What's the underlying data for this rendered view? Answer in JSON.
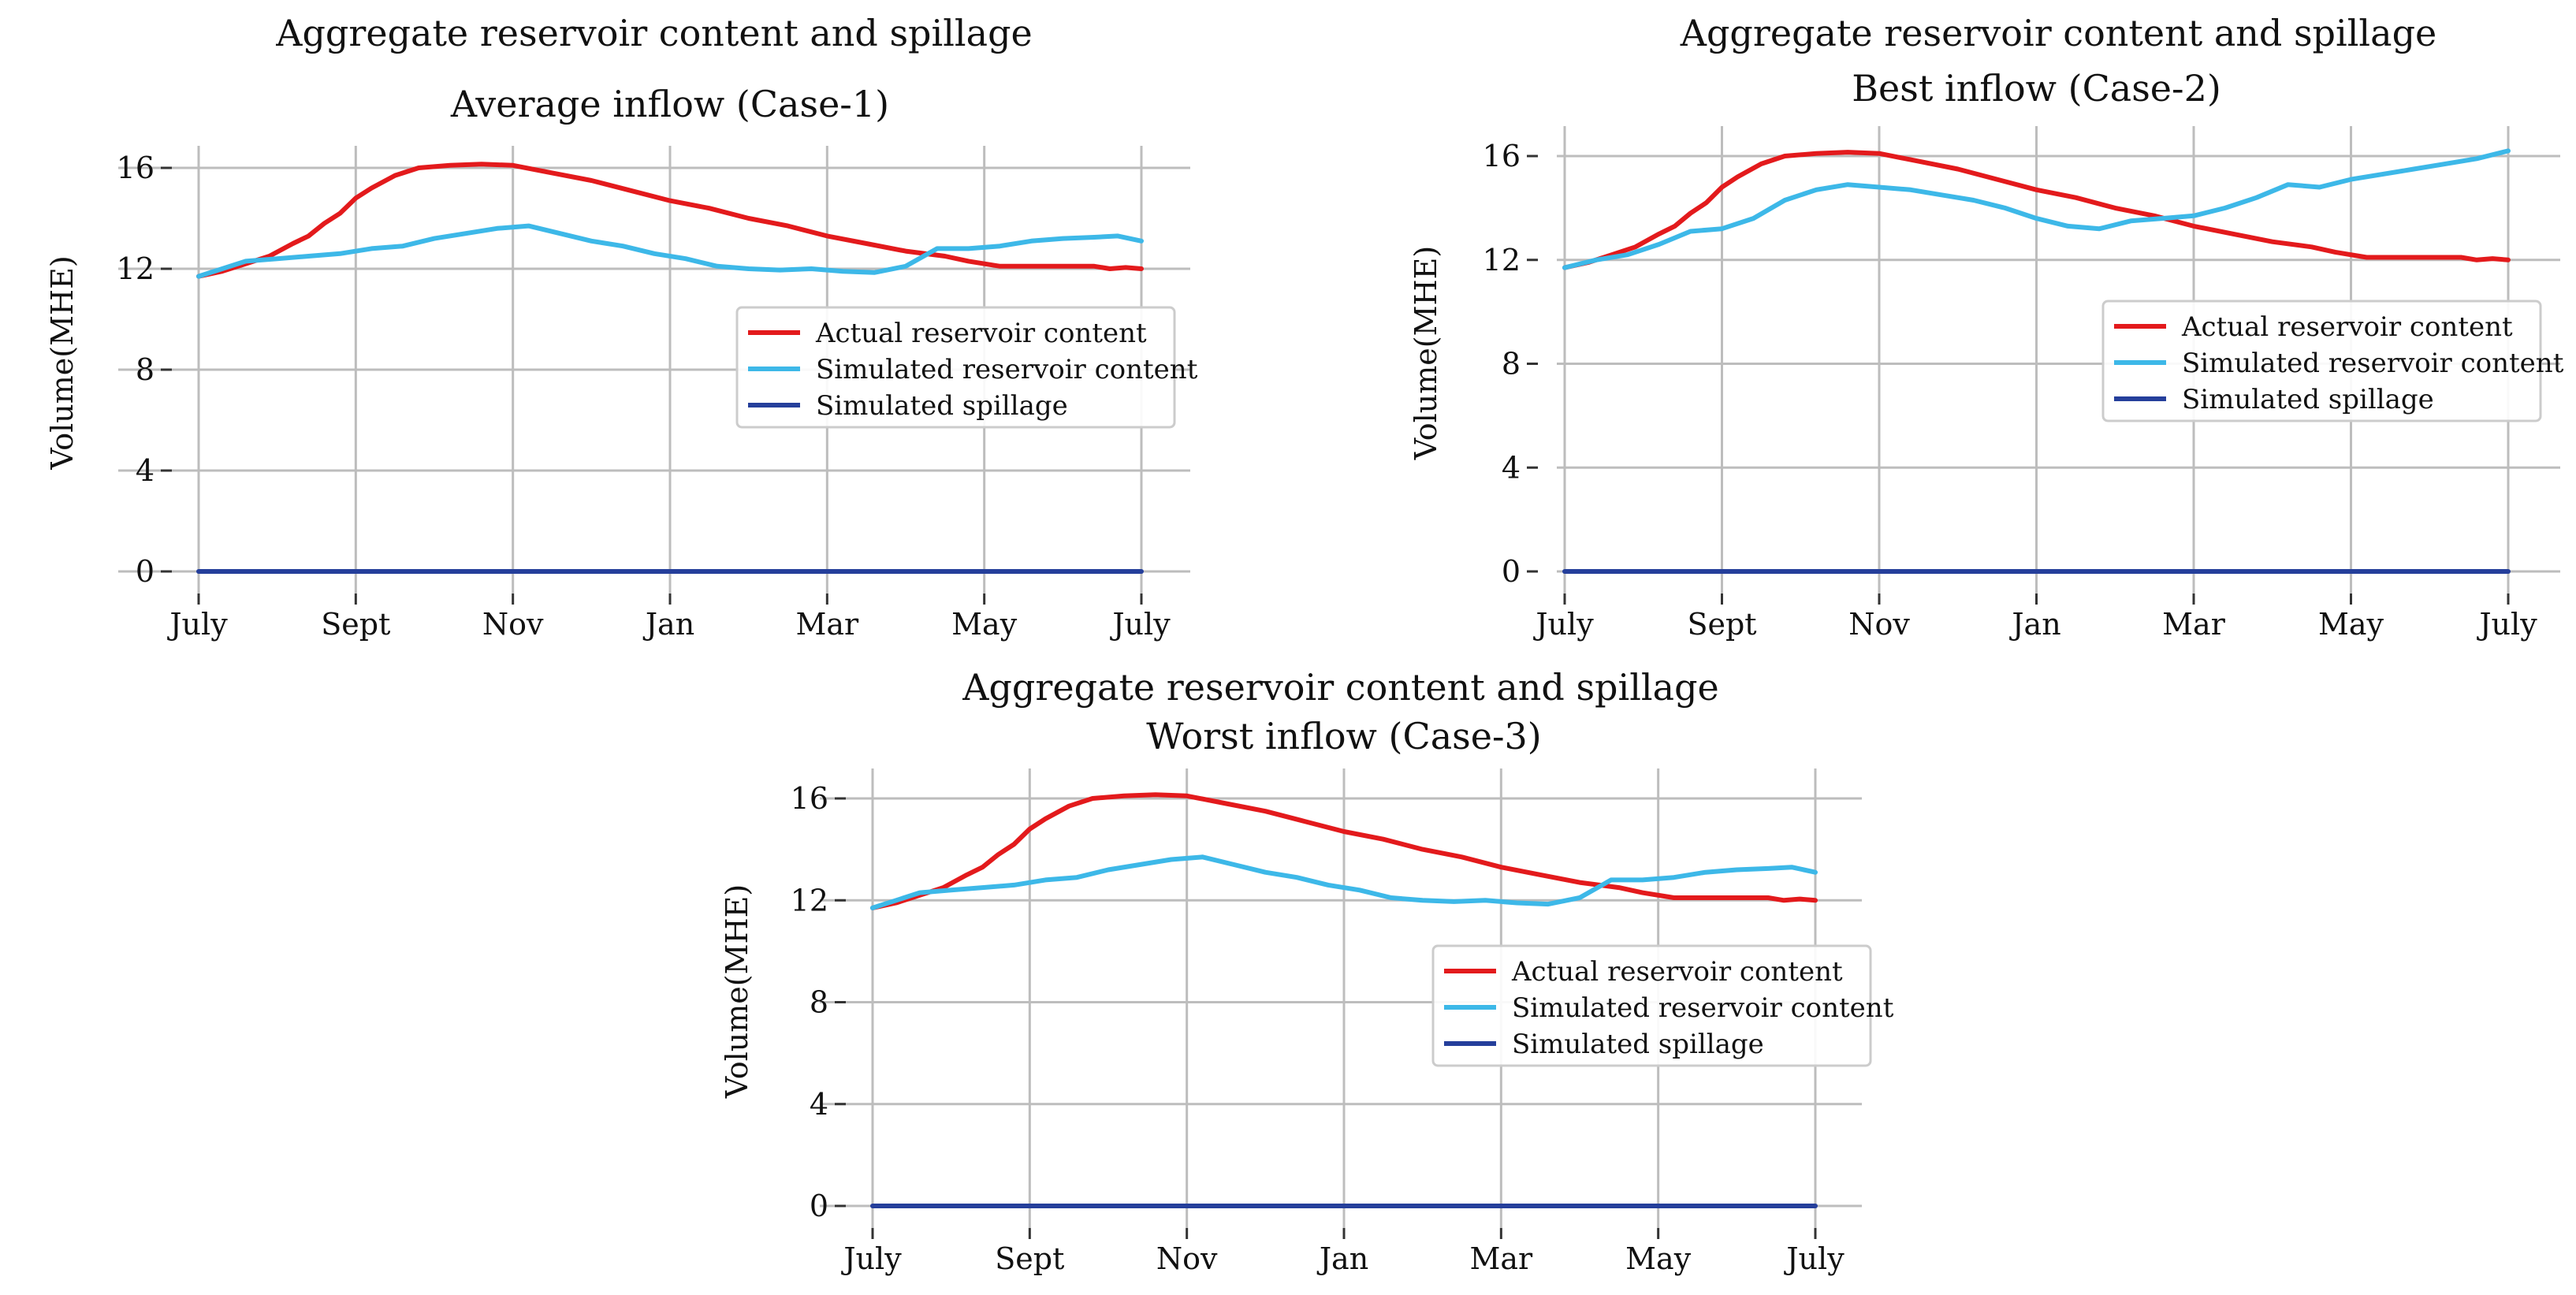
{
  "colors": {
    "actual": "#e31a1c",
    "simulated": "#3db8e8",
    "spillage": "#253f9b",
    "grid": "#bdbdbd",
    "axis": "#b0b0b0",
    "legend_border": "#cccccc"
  },
  "chart_data": [
    {
      "type": "line",
      "title": "Aggregate reservoir content and spillage",
      "subtitle": "Average inflow (Case-1)",
      "xlabel": "",
      "ylabel": "Volume(MHE)",
      "ylim": [
        0,
        17
      ],
      "yticks": [
        "0",
        "4",
        "8",
        "12",
        "16"
      ],
      "xlim": [
        0,
        12
      ],
      "xticks": [
        "July",
        "Sept",
        "Nov",
        "Jan",
        "Mar",
        "May",
        "July"
      ],
      "grid": true,
      "legend_position": "center-right",
      "series": [
        {
          "name": "Actual reservoir content",
          "x": [
            0,
            0.3,
            0.6,
            0.9,
            1.2,
            1.4,
            1.6,
            1.8,
            2.0,
            2.2,
            2.5,
            2.8,
            3.2,
            3.6,
            4.0,
            4.5,
            5.0,
            5.5,
            6.0,
            6.5,
            7.0,
            7.5,
            8.0,
            8.5,
            9.0,
            9.5,
            9.8,
            10.2,
            10.6,
            11.0,
            11.4,
            11.6,
            11.8,
            12.0
          ],
          "y": [
            11.7,
            11.9,
            12.2,
            12.5,
            13.0,
            13.3,
            13.8,
            14.2,
            14.8,
            15.2,
            15.7,
            16.0,
            16.1,
            16.15,
            16.1,
            15.8,
            15.5,
            15.1,
            14.7,
            14.4,
            14.0,
            13.7,
            13.3,
            13.0,
            12.7,
            12.5,
            12.3,
            12.1,
            12.1,
            12.1,
            12.1,
            12.0,
            12.05,
            12.0
          ]
        },
        {
          "name": "Simulated reservoir content",
          "x": [
            0,
            0.3,
            0.6,
            1.0,
            1.4,
            1.8,
            2.2,
            2.6,
            3.0,
            3.4,
            3.8,
            4.2,
            4.6,
            5.0,
            5.4,
            5.8,
            6.2,
            6.6,
            7.0,
            7.4,
            7.8,
            8.2,
            8.6,
            9.0,
            9.4,
            9.8,
            10.2,
            10.6,
            11.0,
            11.4,
            11.7,
            12.0
          ],
          "y": [
            11.7,
            12.0,
            12.3,
            12.4,
            12.5,
            12.6,
            12.8,
            12.9,
            13.2,
            13.4,
            13.6,
            13.7,
            13.4,
            13.1,
            12.9,
            12.6,
            12.4,
            12.1,
            12.0,
            11.95,
            12.0,
            11.9,
            11.85,
            12.1,
            12.8,
            12.8,
            12.9,
            13.1,
            13.2,
            13.25,
            13.3,
            13.1
          ]
        },
        {
          "name": "Simulated spillage",
          "x": [
            0,
            12
          ],
          "y": [
            0,
            0
          ]
        }
      ]
    },
    {
      "type": "line",
      "title": "Aggregate reservoir content and spillage",
      "subtitle": "Best inflow (Case-2)",
      "xlabel": "",
      "ylabel": "Volume(MHE)",
      "ylim": [
        0,
        17
      ],
      "yticks": [
        "0",
        "4",
        "8",
        "12",
        "16"
      ],
      "xlim": [
        0,
        12
      ],
      "xticks": [
        "July",
        "Sept",
        "Nov",
        "Jan",
        "Mar",
        "May",
        "July"
      ],
      "grid": true,
      "legend_position": "center-right",
      "series": [
        {
          "name": "Actual reservoir content",
          "x": [
            0,
            0.3,
            0.6,
            0.9,
            1.2,
            1.4,
            1.6,
            1.8,
            2.0,
            2.2,
            2.5,
            2.8,
            3.2,
            3.6,
            4.0,
            4.5,
            5.0,
            5.5,
            6.0,
            6.5,
            7.0,
            7.5,
            8.0,
            8.5,
            9.0,
            9.5,
            9.8,
            10.2,
            10.6,
            11.0,
            11.4,
            11.6,
            11.8,
            12.0
          ],
          "y": [
            11.7,
            11.9,
            12.2,
            12.5,
            13.0,
            13.3,
            13.8,
            14.2,
            14.8,
            15.2,
            15.7,
            16.0,
            16.1,
            16.15,
            16.1,
            15.8,
            15.5,
            15.1,
            14.7,
            14.4,
            14.0,
            13.7,
            13.3,
            13.0,
            12.7,
            12.5,
            12.3,
            12.1,
            12.1,
            12.1,
            12.1,
            12.0,
            12.05,
            12.0
          ]
        },
        {
          "name": "Simulated reservoir content",
          "x": [
            0,
            0.4,
            0.8,
            1.2,
            1.6,
            2.0,
            2.4,
            2.8,
            3.2,
            3.6,
            4.0,
            4.4,
            4.8,
            5.2,
            5.6,
            6.0,
            6.4,
            6.8,
            7.2,
            7.6,
            8.0,
            8.4,
            8.8,
            9.2,
            9.6,
            10.0,
            10.4,
            10.8,
            11.2,
            11.6,
            12.0
          ],
          "y": [
            11.7,
            12.0,
            12.2,
            12.6,
            13.1,
            13.2,
            13.6,
            14.3,
            14.7,
            14.9,
            14.8,
            14.7,
            14.5,
            14.3,
            14.0,
            13.6,
            13.3,
            13.2,
            13.5,
            13.6,
            13.7,
            14.0,
            14.4,
            14.9,
            14.8,
            15.1,
            15.3,
            15.5,
            15.7,
            15.9,
            16.2
          ]
        },
        {
          "name": "Simulated spillage",
          "x": [
            0,
            12
          ],
          "y": [
            0,
            0
          ]
        }
      ]
    },
    {
      "type": "line",
      "title": "Aggregate reservoir content and spillage",
      "subtitle": "Worst inflow (Case-3)",
      "xlabel": "",
      "ylabel": "Volume(MHE)",
      "ylim": [
        0,
        17
      ],
      "yticks": [
        "0",
        "4",
        "8",
        "12",
        "16"
      ],
      "xlim": [
        0,
        12
      ],
      "xticks": [
        "July",
        "Sept",
        "Nov",
        "Jan",
        "Mar",
        "May",
        "July"
      ],
      "grid": true,
      "legend_position": "center-right",
      "series": [
        {
          "name": "Actual reservoir content",
          "x": [
            0,
            0.3,
            0.6,
            0.9,
            1.2,
            1.4,
            1.6,
            1.8,
            2.0,
            2.2,
            2.5,
            2.8,
            3.2,
            3.6,
            4.0,
            4.5,
            5.0,
            5.5,
            6.0,
            6.5,
            7.0,
            7.5,
            8.0,
            8.5,
            9.0,
            9.5,
            9.8,
            10.2,
            10.6,
            11.0,
            11.4,
            11.6,
            11.8,
            12.0
          ],
          "y": [
            11.7,
            11.9,
            12.2,
            12.5,
            13.0,
            13.3,
            13.8,
            14.2,
            14.8,
            15.2,
            15.7,
            16.0,
            16.1,
            16.15,
            16.1,
            15.8,
            15.5,
            15.1,
            14.7,
            14.4,
            14.0,
            13.7,
            13.3,
            13.0,
            12.7,
            12.5,
            12.3,
            12.1,
            12.1,
            12.1,
            12.1,
            12.0,
            12.05,
            12.0
          ]
        },
        {
          "name": "Simulated reservoir content",
          "x": [
            0,
            0.3,
            0.6,
            1.0,
            1.4,
            1.8,
            2.2,
            2.6,
            3.0,
            3.4,
            3.8,
            4.2,
            4.6,
            5.0,
            5.4,
            5.8,
            6.2,
            6.6,
            7.0,
            7.4,
            7.8,
            8.2,
            8.6,
            9.0,
            9.4,
            9.8,
            10.2,
            10.6,
            11.0,
            11.4,
            11.7,
            12.0
          ],
          "y": [
            11.7,
            12.0,
            12.3,
            12.4,
            12.5,
            12.6,
            12.8,
            12.9,
            13.2,
            13.4,
            13.6,
            13.7,
            13.4,
            13.1,
            12.9,
            12.6,
            12.4,
            12.1,
            12.0,
            11.95,
            12.0,
            11.9,
            11.85,
            12.1,
            12.8,
            12.8,
            12.9,
            13.1,
            13.2,
            13.25,
            13.3,
            13.1
          ]
        },
        {
          "name": "Simulated spillage",
          "x": [
            0,
            12
          ],
          "y": [
            0,
            0
          ]
        }
      ]
    }
  ]
}
